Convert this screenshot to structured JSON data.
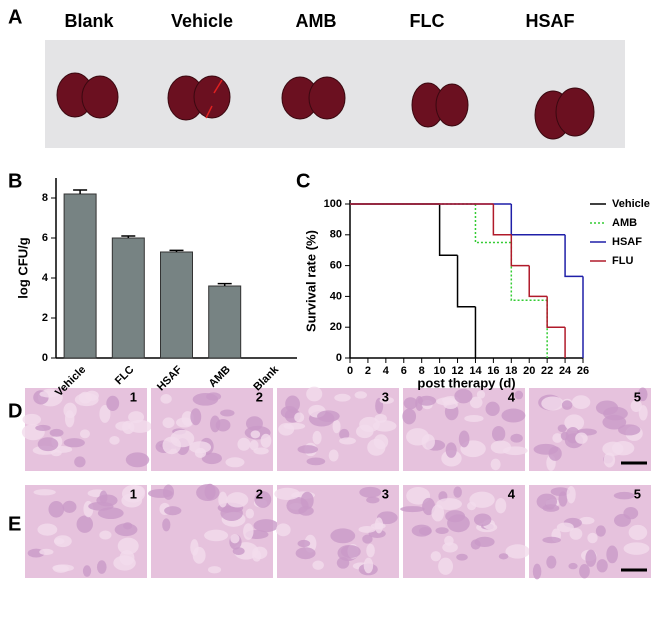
{
  "panel_labels": [
    "A",
    "B",
    "C",
    "D",
    "E"
  ],
  "kidney_labels": [
    "Blank",
    "Vehicle",
    "AMB",
    "FLC",
    "HSAF"
  ],
  "histology_rows": [
    {
      "numbers": [
        "1",
        "2",
        "3",
        "4",
        "5"
      ]
    },
    {
      "numbers": [
        "1",
        "2",
        "3",
        "4",
        "5"
      ]
    }
  ],
  "chart_data": [
    {
      "type": "bar",
      "y_label": "log CFU/g",
      "categories": [
        "Vehicle",
        "FLC",
        "HSAF",
        "AMB",
        "Blank"
      ],
      "values": [
        8.2,
        6.0,
        5.3,
        3.6,
        0
      ],
      "errors": [
        0.2,
        0.1,
        0.08,
        0.12,
        0
      ],
      "color": "#778383",
      "ylim": [
        0,
        9
      ],
      "yticks": [
        0,
        2,
        4,
        6,
        8
      ]
    },
    {
      "type": "step",
      "y_label": "Survival rate (%)",
      "x_label": "post therapy (d)",
      "xlim": [
        0,
        26
      ],
      "xticks": [
        0,
        2,
        4,
        6,
        8,
        10,
        12,
        14,
        16,
        18,
        20,
        22,
        24,
        26
      ],
      "ylim": [
        0,
        100
      ],
      "yticks": [
        0,
        20,
        40,
        60,
        80,
        100
      ],
      "series": [
        {
          "name": "Vehicle",
          "color": "#000000",
          "x": [
            0,
            10,
            12,
            14
          ],
          "values": [
            100,
            66.7,
            33.3,
            0
          ]
        },
        {
          "name": "AMB",
          "color": "#33cc33",
          "x": [
            0,
            14,
            18,
            22
          ],
          "values": [
            100,
            75,
            37.5,
            0
          ]
        },
        {
          "name": "HSAF",
          "color": "#1f1fa8",
          "x": [
            0,
            18,
            24,
            26
          ],
          "values": [
            100,
            80,
            53,
            0
          ]
        },
        {
          "name": "FLU",
          "color": "#b01a2a",
          "x": [
            0,
            16,
            18,
            20,
            22,
            24
          ],
          "values": [
            100,
            80,
            60,
            40,
            20,
            0
          ]
        }
      ]
    }
  ]
}
